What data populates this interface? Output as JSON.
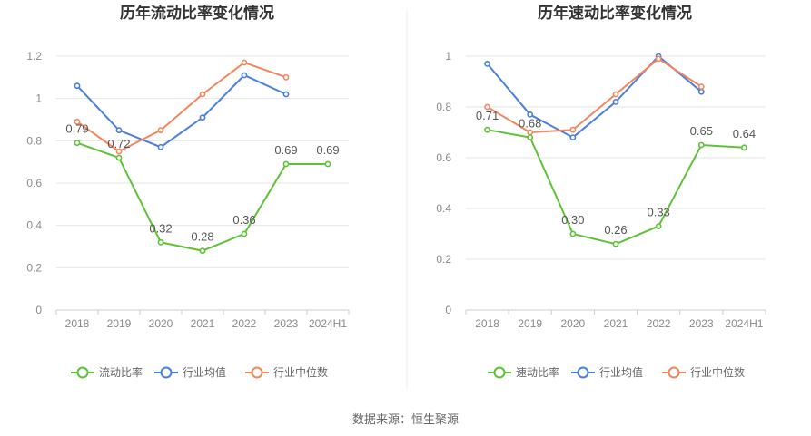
{
  "source": "数据来源：恒生聚源",
  "colors": {
    "company": "#5ec238",
    "industry_avg": "#4a7fe0",
    "industry_median": "#f4865e",
    "grid": "#e6e6e6",
    "axis": "#cccccc"
  },
  "chart_data": [
    {
      "type": "line",
      "title": "历年流动比率变化情况",
      "categories": [
        "2018",
        "2019",
        "2020",
        "2021",
        "2022",
        "2023",
        "2024H1"
      ],
      "ylim": [
        0,
        1.2
      ],
      "yticks": [
        "0",
        "0.2",
        "0.4",
        "0.6",
        "0.8",
        "1",
        "1.2"
      ],
      "ytick_values": [
        0,
        0.2,
        0.4,
        0.6,
        0.8,
        1.0,
        1.2
      ],
      "grid": true,
      "legend_position": "bottom",
      "series": [
        {
          "name": "流动比率",
          "key": "company",
          "labeled": true,
          "values": [
            0.79,
            0.72,
            0.32,
            0.28,
            0.36,
            0.69,
            0.69
          ],
          "labels": [
            "0.79",
            "0.72",
            "0.32",
            "0.28",
            "0.36",
            "0.69",
            "0.69"
          ]
        },
        {
          "name": "行业均值",
          "key": "industry_avg",
          "labeled": false,
          "values": [
            1.06,
            0.85,
            0.77,
            0.91,
            1.11,
            1.02,
            null
          ]
        },
        {
          "name": "行业中位数",
          "key": "industry_median",
          "labeled": false,
          "values": [
            0.89,
            0.75,
            0.85,
            1.02,
            1.17,
            1.1,
            null
          ]
        }
      ]
    },
    {
      "type": "line",
      "title": "历年速动比率变化情况",
      "categories": [
        "2018",
        "2019",
        "2020",
        "2021",
        "2022",
        "2023",
        "2024H1"
      ],
      "ylim": [
        0,
        1.0
      ],
      "yticks": [
        "0",
        "0.2",
        "0.4",
        "0.6",
        "0.8",
        "1"
      ],
      "ytick_values": [
        0,
        0.2,
        0.4,
        0.6,
        0.8,
        1.0
      ],
      "grid": true,
      "legend_position": "bottom",
      "series": [
        {
          "name": "速动比率",
          "key": "company",
          "labeled": true,
          "values": [
            0.71,
            0.68,
            0.3,
            0.26,
            0.33,
            0.65,
            0.64
          ],
          "labels": [
            "0.71",
            "0.68",
            "0.30",
            "0.26",
            "0.33",
            "0.65",
            "0.64"
          ]
        },
        {
          "name": "行业均值",
          "key": "industry_avg",
          "labeled": false,
          "values": [
            0.97,
            0.77,
            0.68,
            0.82,
            1.0,
            0.86,
            null
          ]
        },
        {
          "name": "行业中位数",
          "key": "industry_median",
          "labeled": false,
          "values": [
            0.8,
            0.7,
            0.71,
            0.85,
            0.99,
            0.88,
            null
          ]
        }
      ]
    }
  ]
}
